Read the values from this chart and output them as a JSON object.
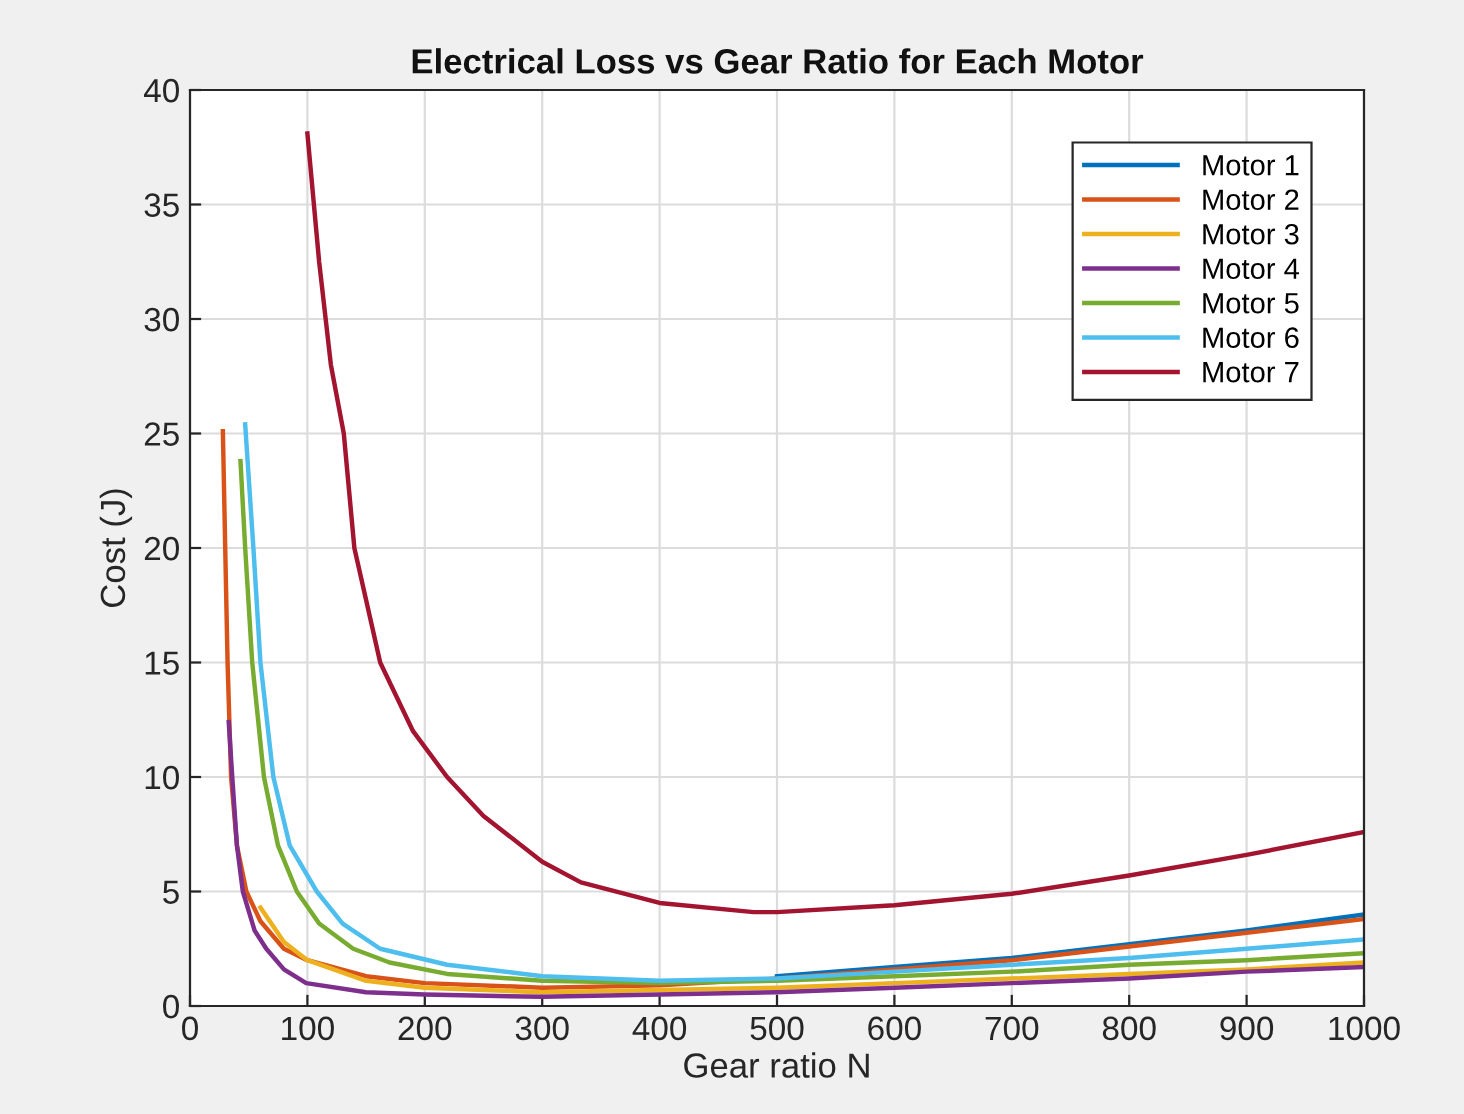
{
  "chart_data": {
    "type": "line",
    "title": "Electrical Loss vs Gear Ratio for Each Motor",
    "xlabel": "Gear ratio N",
    "ylabel": "Cost (J)",
    "xlim": [
      0,
      1000
    ],
    "ylim": [
      0,
      40
    ],
    "xticks": [
      0,
      100,
      200,
      300,
      400,
      500,
      600,
      700,
      800,
      900,
      1000
    ],
    "yticks": [
      0,
      5,
      10,
      15,
      20,
      25,
      30,
      35,
      40
    ],
    "grid": true,
    "legend": "top right",
    "line_style": "solid",
    "series": [
      {
        "name": "Motor 1",
        "color": "#0072bd",
        "x": [
          500,
          600,
          700,
          800,
          900,
          1000
        ],
        "values": [
          1.3,
          1.7,
          2.1,
          2.7,
          3.3,
          4.0
        ]
      },
      {
        "name": "Motor 2",
        "color": "#d95319",
        "x": [
          28,
          30,
          32,
          35,
          40,
          48,
          60,
          80,
          100,
          150,
          200,
          300,
          400,
          500,
          600,
          700,
          800,
          900,
          1000
        ],
        "values": [
          25.1,
          20,
          15,
          10,
          7,
          5,
          3.7,
          2.5,
          2.0,
          1.3,
          1.0,
          0.8,
          0.9,
          1.2,
          1.6,
          2.0,
          2.6,
          3.2,
          3.8
        ]
      },
      {
        "name": "Motor 3",
        "color": "#edb120",
        "x": [
          60,
          80,
          100,
          150,
          200,
          300,
          400,
          500,
          600,
          700,
          800,
          900,
          1000
        ],
        "values": [
          4.3,
          2.8,
          2.0,
          1.1,
          0.8,
          0.6,
          0.7,
          0.8,
          1.0,
          1.2,
          1.4,
          1.6,
          1.9
        ]
      },
      {
        "name": "Motor 4",
        "color": "#7e2f8e",
        "x": [
          33,
          36,
          40,
          45,
          55,
          65,
          80,
          99,
          150,
          200,
          300,
          400,
          500,
          600,
          700,
          800,
          900,
          1000
        ],
        "values": [
          12.4,
          10,
          7,
          5,
          3.3,
          2.5,
          1.6,
          1.0,
          0.6,
          0.5,
          0.4,
          0.5,
          0.6,
          0.8,
          1.0,
          1.2,
          1.5,
          1.7
        ]
      },
      {
        "name": "Motor 5",
        "color": "#77ac30",
        "x": [
          43,
          47,
          53,
          63,
          75,
          91,
          110,
          139,
          170,
          219,
          300,
          400,
          500,
          600,
          700,
          800,
          900,
          1000
        ],
        "values": [
          23.8,
          20,
          15,
          10,
          7,
          5,
          3.6,
          2.5,
          1.9,
          1.4,
          1.1,
          1.0,
          1.1,
          1.3,
          1.5,
          1.8,
          2.0,
          2.3
        ]
      },
      {
        "name": "Motor 6",
        "color": "#4dbeee",
        "x": [
          47,
          54,
          60,
          71,
          85,
          108,
          130,
          162,
          219,
          300,
          400,
          500,
          600,
          700,
          800,
          900,
          1000
        ],
        "values": [
          25.4,
          20,
          15,
          10,
          7,
          5,
          3.6,
          2.5,
          1.8,
          1.3,
          1.1,
          1.2,
          1.5,
          1.8,
          2.1,
          2.5,
          2.9
        ]
      },
      {
        "name": "Motor 7",
        "color": "#a2142f",
        "x": [
          100,
          110,
          120,
          131,
          140,
          162,
          190,
          219,
          250,
          300,
          333,
          400,
          480,
          500,
          600,
          700,
          800,
          900,
          1000
        ],
        "values": [
          38.1,
          32.5,
          28,
          25,
          20,
          15,
          12,
          10,
          8.3,
          6.3,
          5.4,
          4.5,
          4.1,
          4.1,
          4.4,
          4.9,
          5.7,
          6.6,
          7.6
        ]
      }
    ]
  }
}
